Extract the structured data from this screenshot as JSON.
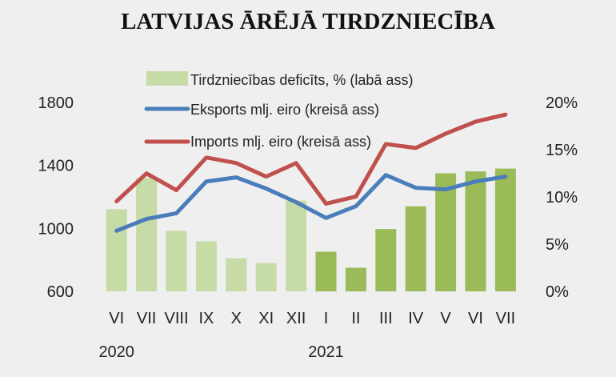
{
  "chart_data": {
    "type": "bar+line",
    "title": "LATVIJAS ĀRĒJĀ TIRDZNIECĪBA",
    "categories": [
      "VI",
      "VII",
      "VIII",
      "IX",
      "X",
      "XI",
      "XII",
      "I",
      "II",
      "III",
      "IV",
      "V",
      "VI",
      "VII"
    ],
    "year_labels": [
      {
        "label": "2020",
        "index": 0
      },
      {
        "label": "2021",
        "index": 7
      }
    ],
    "left_axis": {
      "ylim": [
        600,
        1800
      ],
      "ticks": [
        "600",
        "1000",
        "1400",
        "1800"
      ]
    },
    "right_axis": {
      "ylim": [
        0,
        20
      ],
      "ticks": [
        "0%",
        "5%",
        "10%",
        "15%",
        "20%"
      ]
    },
    "grid": false,
    "legend_position": "top",
    "series": [
      {
        "name": "Tirdzniecības deficīts, % (labā ass)",
        "type": "bar",
        "axis": "right",
        "color_2020": "#c6dba6",
        "color_2021": "#9bbb59",
        "values": [
          8.7,
          12.0,
          6.4,
          5.3,
          3.5,
          3.0,
          9.6,
          4.2,
          2.5,
          6.6,
          9.0,
          12.5,
          12.7,
          13.0
        ]
      },
      {
        "name": "Eksports mlj. eiro (kreisā ass)",
        "type": "line",
        "axis": "left",
        "color": "#4a7ebb",
        "values": [
          985,
          1060,
          1096,
          1298,
          1324,
          1253,
          1167,
          1066,
          1141,
          1339,
          1258,
          1248,
          1298,
          1329
        ]
      },
      {
        "name": "Imports mlj. eiro (kreisā ass)",
        "type": "line",
        "axis": "left",
        "color": "#c0504d",
        "values": [
          1172,
          1349,
          1243,
          1450,
          1415,
          1329,
          1415,
          1157,
          1202,
          1536,
          1511,
          1602,
          1678,
          1723
        ]
      }
    ]
  }
}
